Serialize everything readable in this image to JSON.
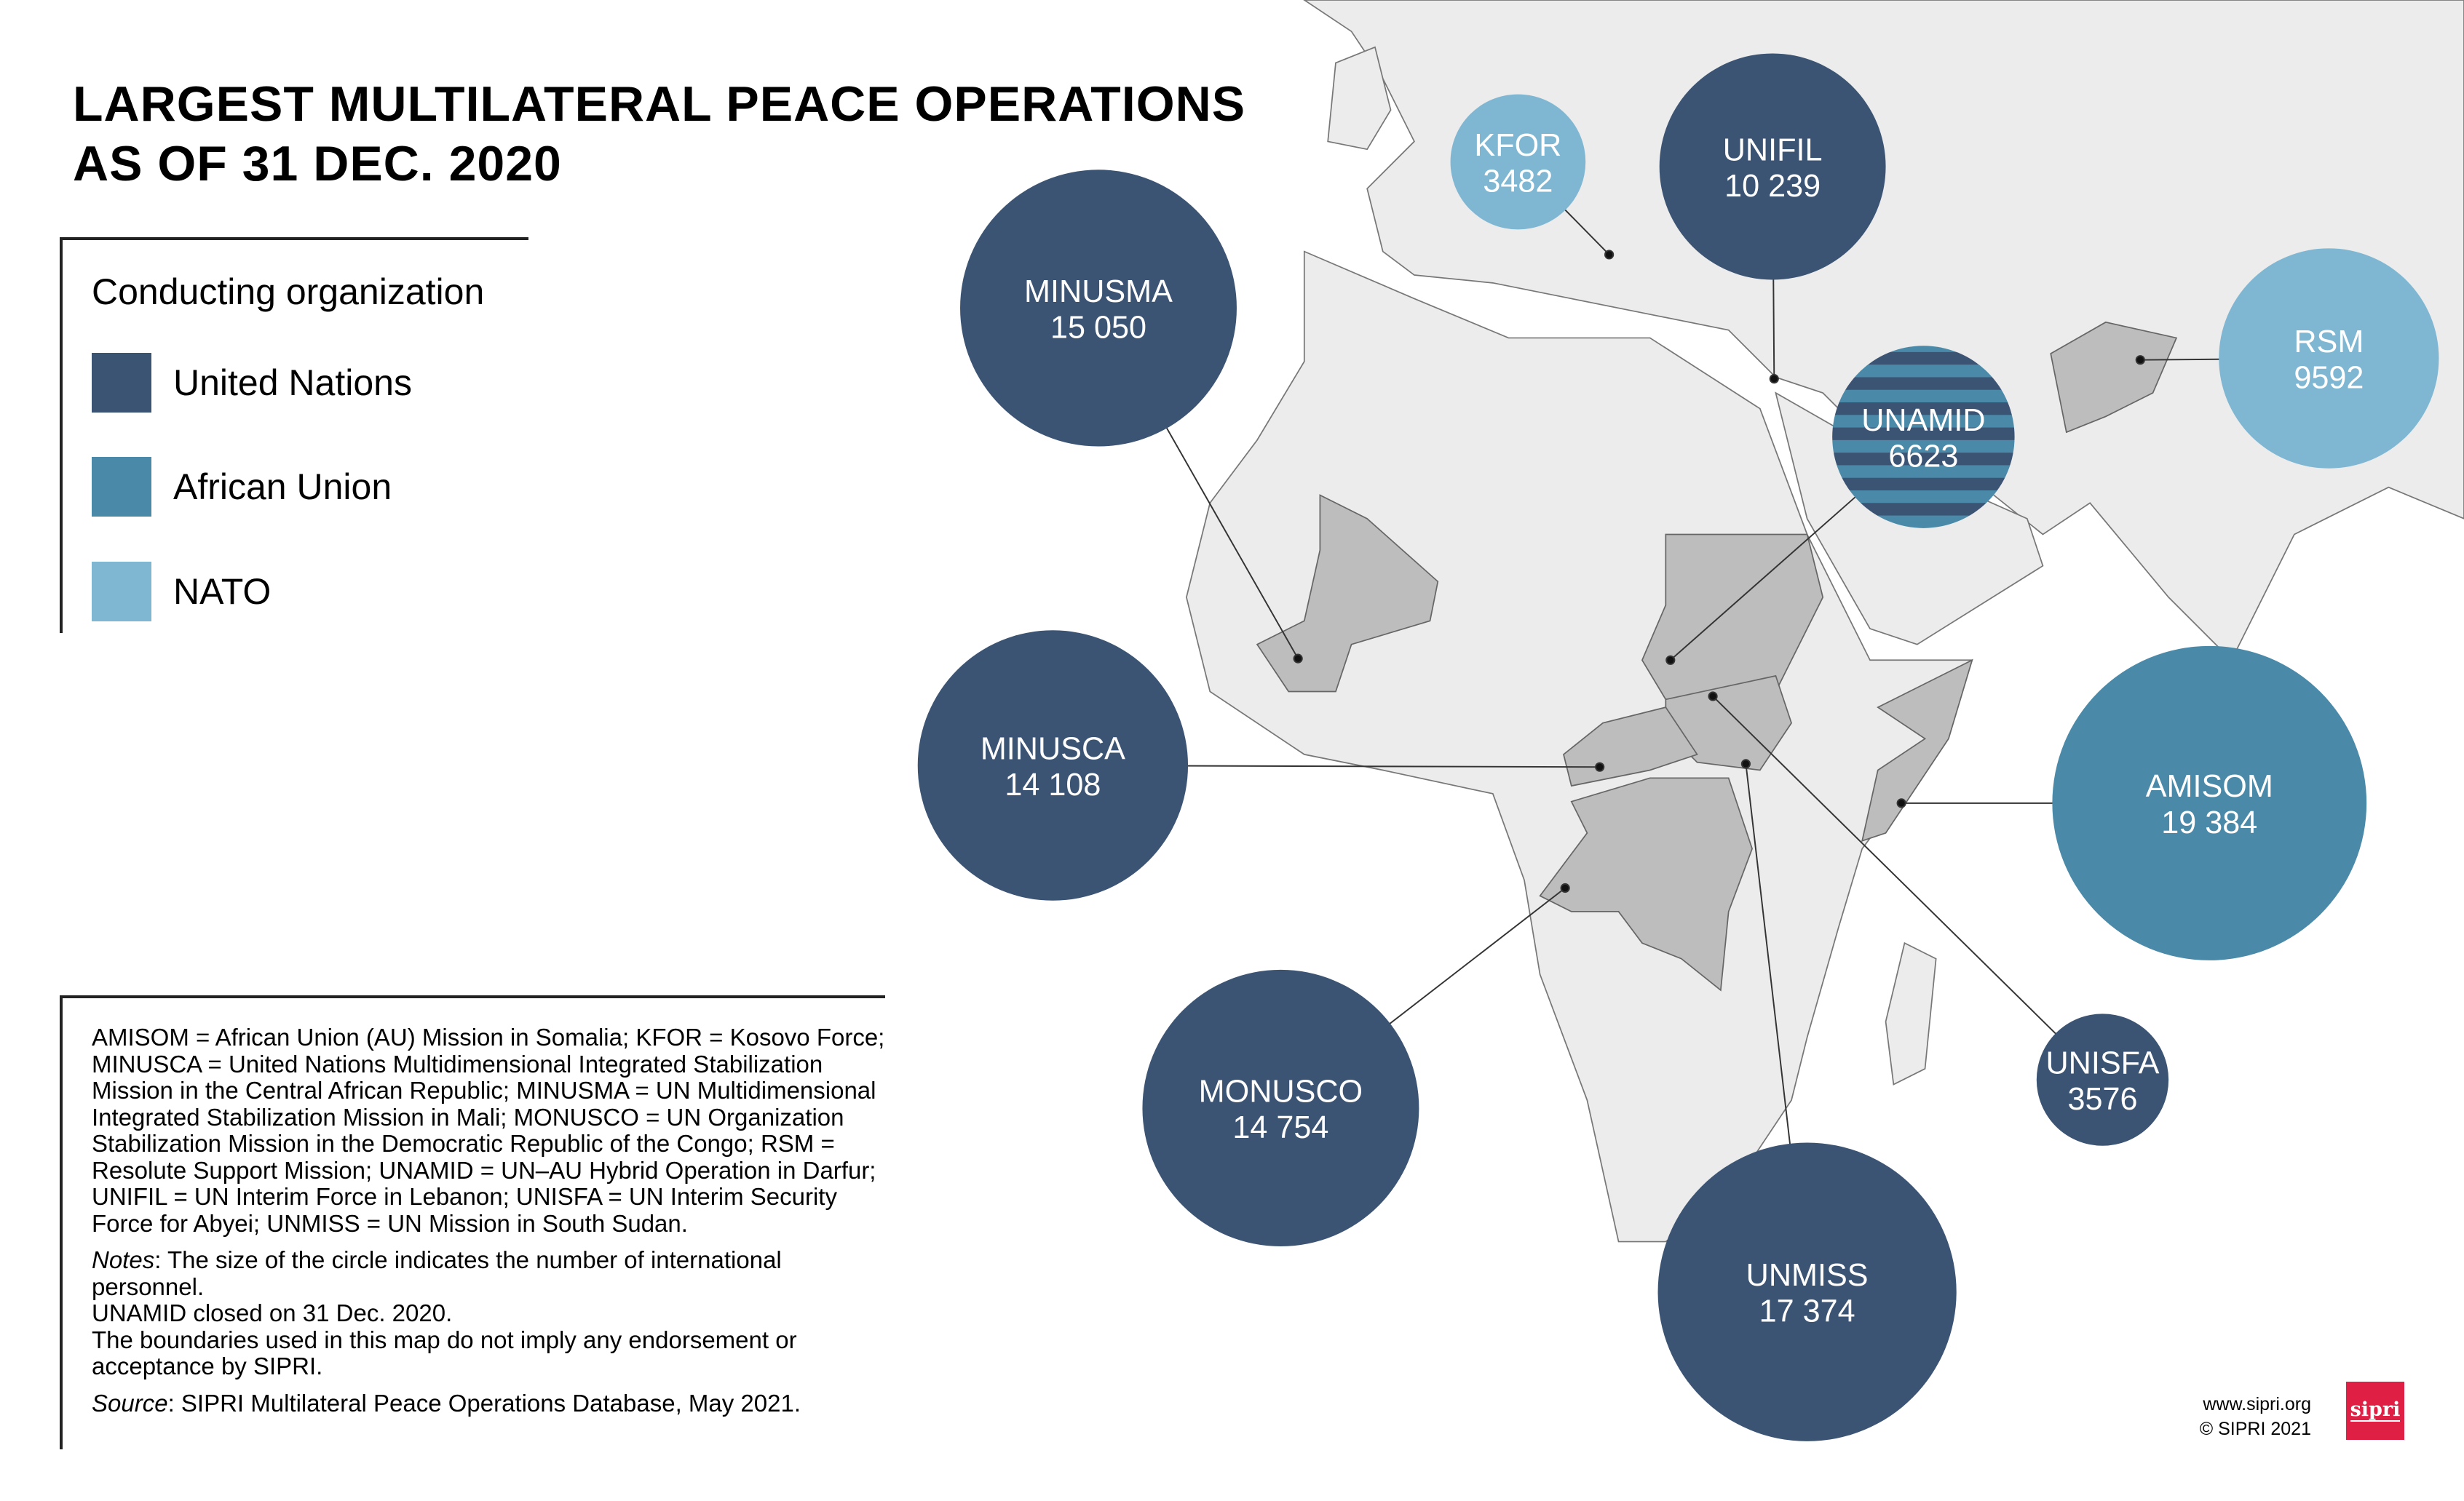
{
  "title_lines": [
    "LARGEST MULTILATERAL PEACE OPERATIONS",
    "AS OF 31 DEC. 2020"
  ],
  "legend": {
    "title": "Conducting organization",
    "items": [
      {
        "label": "United Nations",
        "color": "#3c5473"
      },
      {
        "label": "African Union",
        "color": "#4a8aa8"
      },
      {
        "label": "NATO",
        "color": "#7fb7d3"
      }
    ]
  },
  "operations": [
    {
      "name": "KFOR",
      "value": "3482",
      "org": "NATO"
    },
    {
      "name": "UNIFIL",
      "value": "10 239",
      "org": "United Nations"
    },
    {
      "name": "MINUSMA",
      "value": "15 050",
      "org": "United Nations"
    },
    {
      "name": "RSM",
      "value": "9592",
      "org": "NATO"
    },
    {
      "name": "UNAMID",
      "value": "6623",
      "org": "United Nations / African Union"
    },
    {
      "name": "MINUSCA",
      "value": "14 108",
      "org": "United Nations"
    },
    {
      "name": "AMISOM",
      "value": "19 384",
      "org": "African Union"
    },
    {
      "name": "MONUSCO",
      "value": "14 754",
      "org": "United Nations"
    },
    {
      "name": "UNISFA",
      "value": "3576",
      "org": "United Nations"
    },
    {
      "name": "UNMISS",
      "value": "17 374",
      "org": "United Nations"
    }
  ],
  "notes": {
    "abbreviations": "AMISOM = African Union (AU) Mission in Somalia; KFOR = Kosovo Force; MINUSCA = United Nations Multidimensional Integrated Stabilization Mission in the Central African Republic; MINUSMA = UN Multidimensional Integrated Stabilization Mission in Mali; MONUSCO = UN Organization Stabilization Mission in the Democratic Republic of the Congo; RSM = Resolute Support Mission; UNAMID = UN–AU Hybrid Operation in Darfur; UNIFIL = UN Interim Force in Lebanon; UNISFA = UN Interim Security Force for Abyei; UNMISS = UN Mission in South Sudan.",
    "notes_label": "Notes",
    "notes_text": ": The size of the circle indicates the number of international personnel.",
    "closed": "UNAMID closed on 31 Dec. 2020.",
    "boundaries": "The boundaries used in this map do not imply any endorsement or acceptance by SIPRI.",
    "source_label": "Source",
    "source_text": ": SIPRI Multilateral Peace Operations Database, May 2021."
  },
  "credit": {
    "url": "www.sipri.org",
    "copyright": "© SIPRI 2021",
    "logo": "sipri"
  },
  "colors": {
    "land": "#ececec",
    "highlight": "#bdbdbd",
    "border": "#777777"
  }
}
